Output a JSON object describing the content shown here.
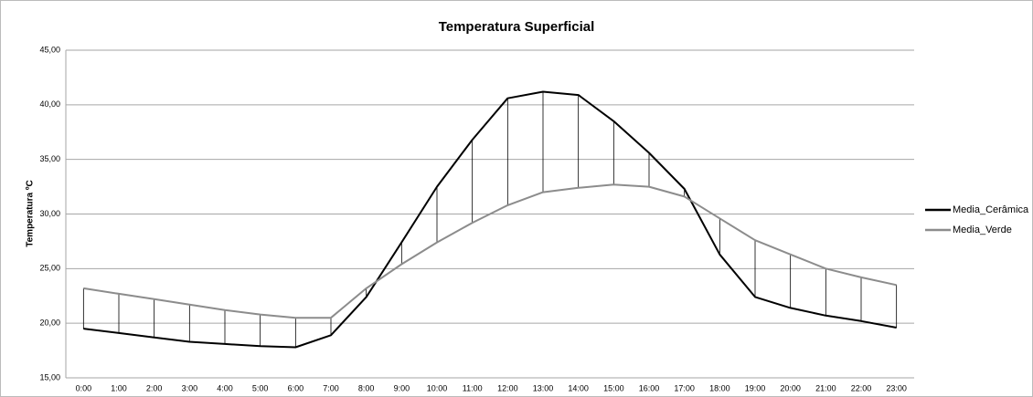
{
  "chart_data": {
    "type": "line",
    "title": "Temperatura Superficial",
    "y_label": "Temperatura ºC",
    "categories": [
      "0:00",
      "1:00",
      "2:00",
      "3:00",
      "4:00",
      "5:00",
      "6:00",
      "7:00",
      "8:00",
      "9:00",
      "10:00",
      "11:00",
      "12:00",
      "13:00",
      "14:00",
      "15:00",
      "16:00",
      "17:00",
      "18:00",
      "19:00",
      "20:00",
      "21:00",
      "22:00",
      "23:00"
    ],
    "series": [
      {
        "name": "Media_Cerâmica",
        "color": "#000000",
        "values": [
          19.5,
          19.1,
          18.7,
          18.3,
          18.1,
          17.9,
          17.8,
          18.9,
          22.4,
          27.4,
          32.5,
          36.8,
          40.6,
          41.2,
          40.9,
          38.5,
          35.6,
          32.3,
          26.3,
          22.4,
          21.4,
          20.7,
          20.2,
          19.6
        ]
      },
      {
        "name": "Media_Verde",
        "color": "#8c8c8c",
        "values": [
          23.2,
          22.7,
          22.2,
          21.7,
          21.2,
          20.8,
          20.5,
          20.5,
          23.2,
          25.4,
          27.4,
          29.2,
          30.8,
          32.0,
          32.4,
          32.7,
          32.5,
          31.6,
          29.6,
          27.6,
          26.3,
          25.0,
          24.2,
          23.5
        ]
      }
    ],
    "high_low_lines": true,
    "ylim": [
      15,
      45
    ],
    "yticks": [
      {
        "value": 15,
        "label": "15,00"
      },
      {
        "value": 20,
        "label": "20,00"
      },
      {
        "value": 25,
        "label": "25,00"
      },
      {
        "value": 30,
        "label": "30,00"
      },
      {
        "value": 35,
        "label": "35,00"
      },
      {
        "value": 40,
        "label": "40,00"
      },
      {
        "value": 45,
        "label": "45,00"
      }
    ],
    "grid": true,
    "legend": "right"
  }
}
